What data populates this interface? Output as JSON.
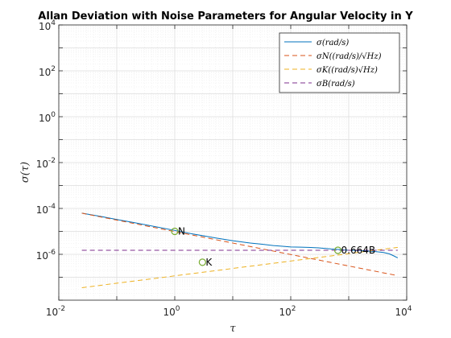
{
  "chart_data": {
    "type": "line",
    "title": "Allan Deviation with Noise Parameters for Angular Velocity in Y",
    "xlabel": "τ",
    "ylabel": "σ(τ)",
    "xscale": "log",
    "yscale": "log",
    "xlim": [
      0.01,
      10000
    ],
    "ylim": [
      1e-08,
      10000
    ],
    "grid": true,
    "legend_position": "top-right",
    "xticks": [
      {
        "value": 0.01,
        "base": "10",
        "exp": "-2"
      },
      {
        "value": 1,
        "base": "10",
        "exp": "0"
      },
      {
        "value": 100,
        "base": "10",
        "exp": "2"
      },
      {
        "value": 10000,
        "base": "10",
        "exp": "4"
      }
    ],
    "yticks": [
      {
        "value": 1e-06,
        "base": "10",
        "exp": "-6"
      },
      {
        "value": 0.0001,
        "base": "10",
        "exp": "-4"
      },
      {
        "value": 0.01,
        "base": "10",
        "exp": "-2"
      },
      {
        "value": 1,
        "base": "10",
        "exp": "0"
      },
      {
        "value": 100,
        "base": "10",
        "exp": "2"
      },
      {
        "value": 10000,
        "base": "10",
        "exp": "4"
      }
    ],
    "series": [
      {
        "name": "σ(rad/s)",
        "color": "#0072BD",
        "dash": "solid",
        "x": [
          0.025,
          0.05,
          0.1,
          0.2,
          0.5,
          1,
          2,
          5,
          10,
          20,
          30,
          50,
          80,
          100,
          150,
          200,
          300,
          400,
          500,
          700,
          1000,
          1500,
          2000,
          3000,
          4000,
          5000,
          6000,
          7000
        ],
        "y": [
          6.2e-05,
          4.6e-05,
          3.3e-05,
          2.4e-05,
          1.55e-05,
          1.1e-05,
          7.8e-06,
          5.2e-06,
          3.9e-06,
          3.1e-06,
          2.8e-06,
          2.4e-06,
          2.2e-06,
          2.1e-06,
          2.05e-06,
          2e-06,
          1.9e-06,
          1.8e-06,
          1.7e-06,
          1.6e-06,
          1.5e-06,
          1.45e-06,
          1.4e-06,
          1.3e-06,
          1.2e-06,
          1.05e-06,
          8.5e-07,
          7e-07
        ]
      },
      {
        "name": "σ_N((rad/s)/√Hz)",
        "color": "#D95319",
        "dash": "dashed",
        "x": [
          0.025,
          7000
        ],
        "y": [
          6.2e-05,
          1.17e-07
        ]
      },
      {
        "name": "σ_K((rad/s)√Hz)",
        "color": "#EDB120",
        "dash": "dashed",
        "x": [
          0.025,
          7000
        ],
        "y": [
          3.5e-08,
          2e-06
        ]
      },
      {
        "name": "σ_B(rad/s)",
        "color": "#7E2F8E",
        "dash": "dashed",
        "x": [
          0.025,
          7000
        ],
        "y": [
          1.5e-06,
          1.5e-06
        ]
      }
    ],
    "markers": [
      {
        "label": "N",
        "x": 1,
        "y": 1e-05
      },
      {
        "label": "K",
        "x": 3,
        "y": 4.5e-07
      },
      {
        "label": "0.664B",
        "x": 650,
        "y": 1.5e-06
      }
    ]
  },
  "colors": {
    "axes": "#262626",
    "grid_major": "#dddddd",
    "grid_minor": "#eeeeee",
    "marker": "#77AC30"
  },
  "legend": {
    "entries": [
      "σ(rad/s)",
      "σN((rad/s)/√Hz)",
      "σK((rad/s)√Hz)",
      "σB(rad/s)"
    ]
  }
}
